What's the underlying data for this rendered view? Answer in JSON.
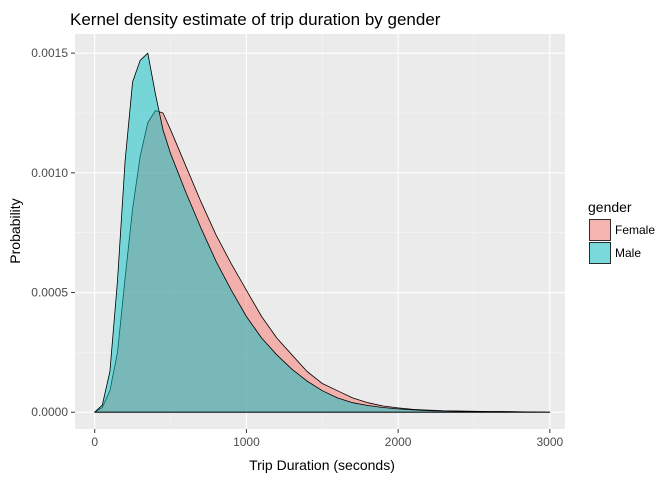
{
  "chart_data": {
    "type": "area",
    "title": "Kernel density estimate of trip duration by gender",
    "xlabel": "Trip Duration (seconds)",
    "ylabel": "Probability",
    "xlim": [
      -130,
      3100
    ],
    "ylim": [
      -7e-05,
      0.00158
    ],
    "x_ticks": [
      0,
      1000,
      2000,
      3000
    ],
    "x_tick_labels": [
      "0",
      "1000",
      "2000",
      "3000"
    ],
    "y_ticks": [
      0,
      0.0005,
      0.001,
      0.0015
    ],
    "y_tick_labels": [
      "0.0000",
      "0.0005",
      "0.0010",
      "0.0015"
    ],
    "grid": true,
    "legend": {
      "title": "gender",
      "position": "right",
      "entries": [
        "Female",
        "Male"
      ]
    },
    "x": [
      0,
      50,
      100,
      150,
      200,
      250,
      300,
      350,
      400,
      450,
      500,
      600,
      700,
      800,
      900,
      1000,
      1100,
      1200,
      1300,
      1400,
      1500,
      1600,
      1700,
      1800,
      1900,
      2000,
      2100,
      2200,
      2300,
      2400,
      2500,
      2600,
      2700,
      2800,
      2900,
      3000
    ],
    "series": [
      {
        "name": "Female",
        "color": "#F8766D",
        "values": [
          0,
          2e-05,
          9e-05,
          0.00025,
          0.00056,
          0.00085,
          0.00107,
          0.00121,
          0.00126,
          0.00125,
          0.00118,
          0.00103,
          0.00088,
          0.00074,
          0.00062,
          0.00051,
          0.0004,
          0.00031,
          0.00024,
          0.00017,
          0.00012,
          9e-05,
          6e-05,
          4e-05,
          2.6e-05,
          1.8e-05,
          1.2e-05,
          9e-06,
          6e-06,
          5e-06,
          4e-06,
          3e-06,
          3e-06,
          2e-06,
          1e-06,
          0
        ]
      },
      {
        "name": "Male",
        "color": "#00BFC4",
        "values": [
          0,
          3e-05,
          0.00017,
          0.00055,
          0.00105,
          0.00138,
          0.00147,
          0.0015,
          0.00133,
          0.00118,
          0.00108,
          0.00092,
          0.00077,
          0.00063,
          0.00051,
          0.0004,
          0.00031,
          0.00024,
          0.00018,
          0.00013,
          9e-05,
          6e-05,
          4e-05,
          2.8e-05,
          2e-05,
          1.4e-05,
          1e-05,
          7e-06,
          5e-06,
          4e-06,
          3e-06,
          2e-06,
          2e-06,
          1e-06,
          1e-06,
          0
        ]
      }
    ]
  }
}
